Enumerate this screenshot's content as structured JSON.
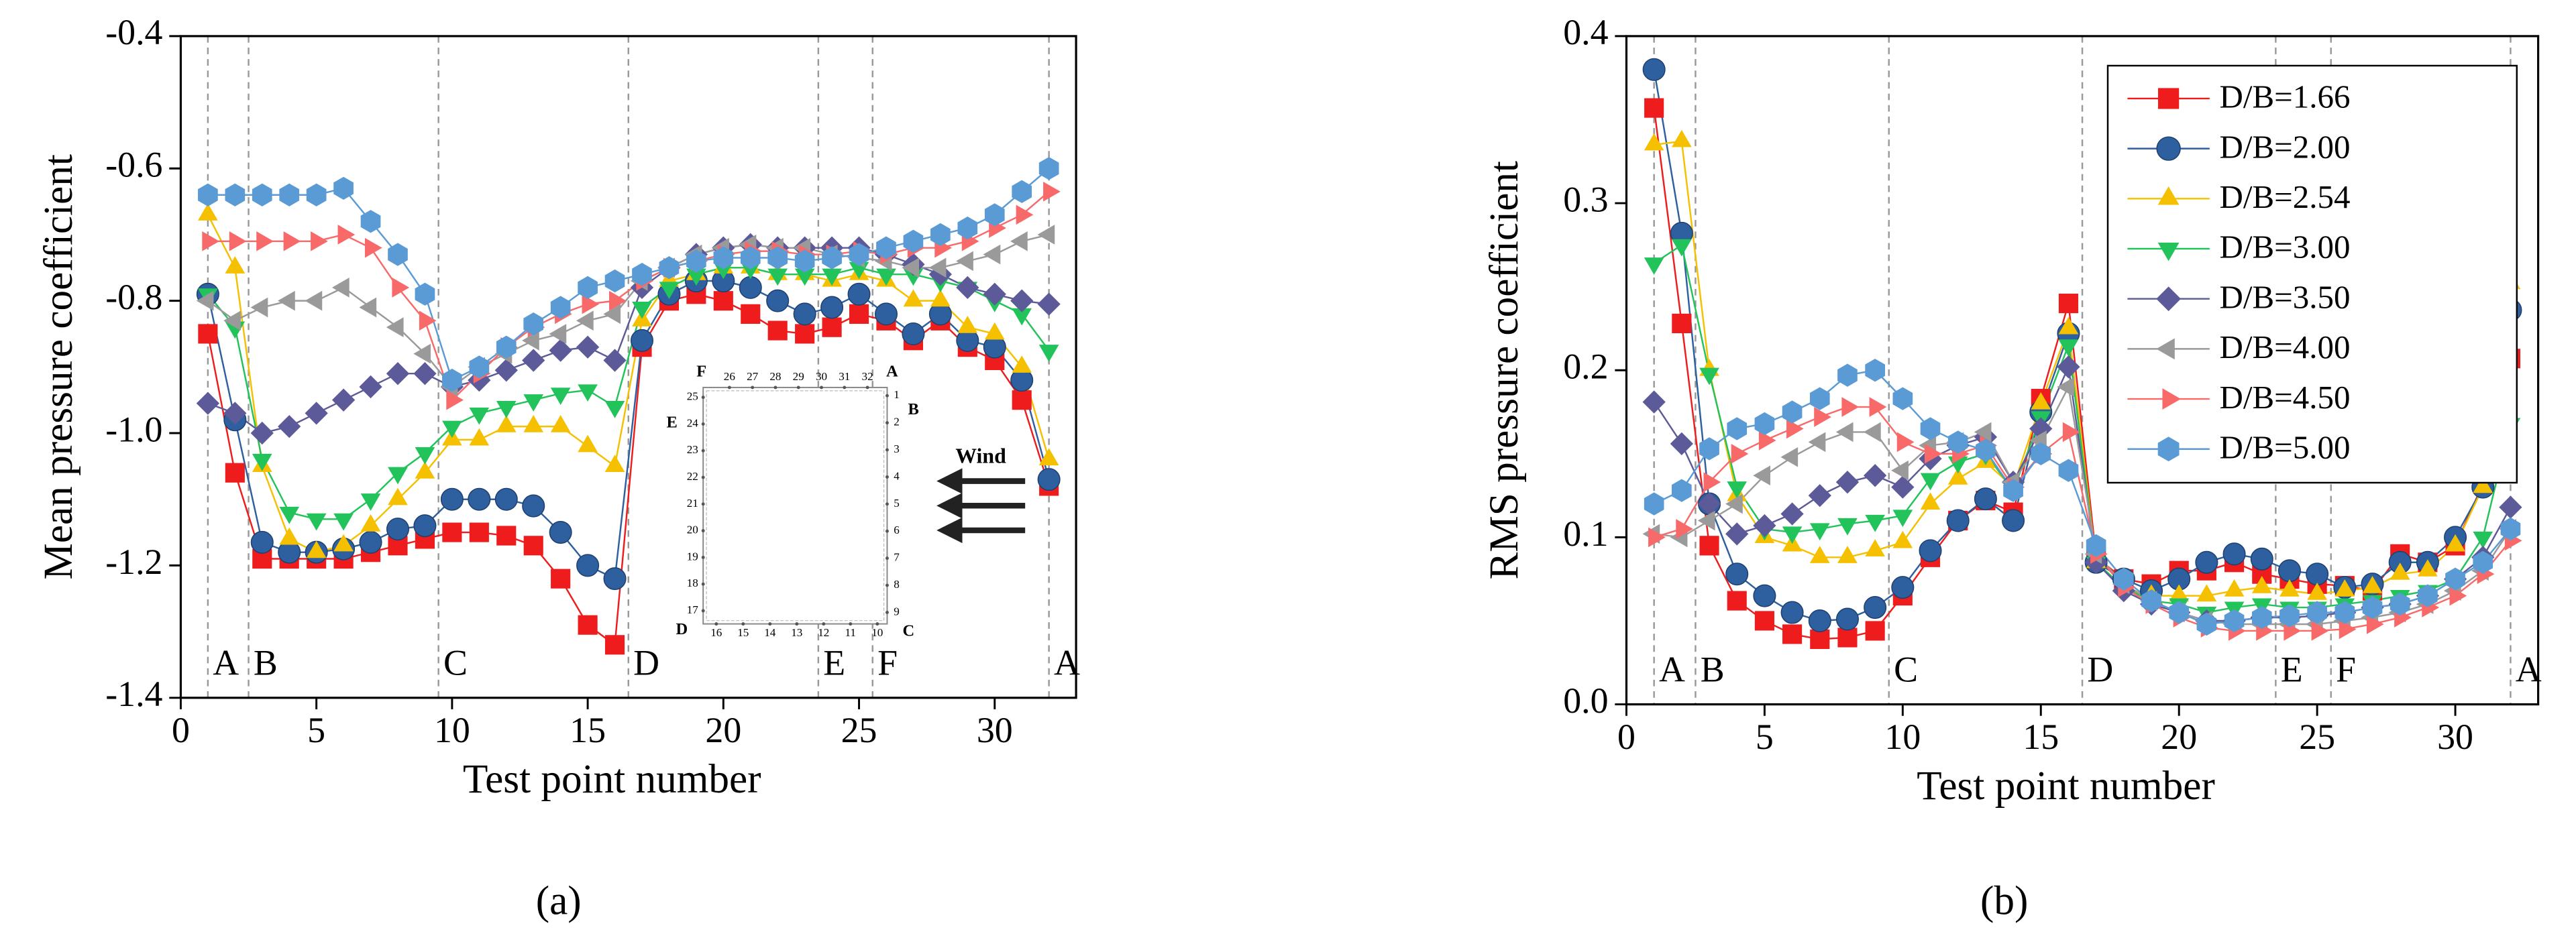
{
  "chart_data": [
    {
      "type": "line",
      "caption": "(a)",
      "ylabel": "Mean pressure coefficient",
      "xlabel": "Test point number",
      "xlim": [
        0,
        33
      ],
      "xticks": [
        0,
        5,
        10,
        15,
        20,
        25,
        30
      ],
      "ylim": [
        -1.4,
        -0.4
      ],
      "yticks": [
        -1.4,
        -1.2,
        {
          "value": -1,
          "label": "-1.0"
        },
        -0.8,
        -0.6,
        -0.4
      ],
      "sections": [
        {
          "x": 1,
          "label": "A"
        },
        {
          "x": 2.5,
          "label": "B"
        },
        {
          "x": 9.5,
          "label": "C"
        },
        {
          "x": 16.5,
          "label": "D"
        },
        {
          "x": 23.5,
          "label": "E"
        },
        {
          "x": 25.5,
          "label": "F"
        },
        {
          "x": 32,
          "label": "A"
        }
      ],
      "inset": {
        "corners": {
          "A": "A",
          "B": "B",
          "C": "C",
          "D": "D",
          "E": "E",
          "F": "F"
        },
        "points": [
          1,
          2,
          3,
          4,
          5,
          6,
          7,
          8,
          9,
          10,
          11,
          12,
          13,
          14,
          15,
          16,
          17,
          18,
          19,
          20,
          21,
          22,
          23,
          24,
          25,
          26,
          27,
          28,
          29,
          30,
          31,
          32
        ],
        "wind": "Wind"
      },
      "x": [
        1,
        2,
        3,
        4,
        5,
        6,
        7,
        8,
        9,
        10,
        11,
        12,
        13,
        14,
        15,
        16,
        17,
        18,
        19,
        20,
        21,
        22,
        23,
        24,
        25,
        26,
        27,
        28,
        29,
        30,
        31,
        32
      ],
      "series": [
        {
          "color": "#ee1c1c",
          "marker": "square",
          "values": [
            -0.85,
            -1.06,
            -1.19,
            -1.19,
            -1.19,
            -1.19,
            -1.18,
            -1.17,
            -1.16,
            -1.15,
            -1.15,
            -1.155,
            -1.17,
            -1.22,
            -1.29,
            -1.32,
            -0.87,
            -0.8,
            -0.79,
            -0.8,
            -0.82,
            -0.845,
            -0.85,
            -0.84,
            -0.82,
            -0.83,
            -0.86,
            -0.83,
            -0.87,
            -0.89,
            -0.95,
            -1.08
          ]
        },
        {
          "color": "#2e5f9e",
          "marker": "circle",
          "values": [
            -0.79,
            -0.98,
            -1.165,
            -1.18,
            -1.18,
            -1.175,
            -1.165,
            -1.145,
            -1.14,
            -1.1,
            -1.1,
            -1.1,
            -1.11,
            -1.15,
            -1.2,
            -1.22,
            -0.86,
            -0.79,
            -0.77,
            -0.77,
            -0.78,
            -0.8,
            -0.82,
            -0.81,
            -0.79,
            -0.82,
            -0.85,
            -0.82,
            -0.86,
            -0.87,
            -0.92,
            -1.07
          ]
        },
        {
          "color": "#f5c000",
          "marker": "triangle-up",
          "values": [
            -0.67,
            -0.75,
            -1.05,
            -1.16,
            -1.18,
            -1.17,
            -1.14,
            -1.1,
            -1.06,
            -1.01,
            -1.01,
            -0.99,
            -0.99,
            -0.99,
            -1.02,
            -1.05,
            -0.83,
            -0.77,
            -0.76,
            -0.75,
            -0.75,
            -0.76,
            -0.76,
            -0.77,
            -0.76,
            -0.77,
            -0.8,
            -0.8,
            -0.84,
            -0.85,
            -0.9,
            -1.04
          ]
        },
        {
          "color": "#22c35a",
          "marker": "triangle-down",
          "values": [
            -0.79,
            -0.84,
            -1.04,
            -1.12,
            -1.13,
            -1.13,
            -1.1,
            -1.06,
            -1.03,
            -0.99,
            -0.97,
            -0.96,
            -0.95,
            -0.94,
            -0.935,
            -0.96,
            -0.81,
            -0.78,
            -0.76,
            -0.75,
            -0.75,
            -0.76,
            -0.76,
            -0.76,
            -0.75,
            -0.76,
            -0.76,
            -0.77,
            -0.78,
            -0.8,
            -0.82,
            -0.875
          ]
        },
        {
          "color": "#5d5a9a",
          "marker": "diamond",
          "values": [
            -0.955,
            -0.97,
            -1,
            -0.99,
            -0.97,
            -0.95,
            -0.93,
            -0.91,
            -0.91,
            -0.93,
            -0.92,
            -0.905,
            -0.89,
            -0.875,
            -0.87,
            -0.89,
            -0.78,
            -0.75,
            -0.73,
            -0.72,
            -0.715,
            -0.72,
            -0.72,
            -0.72,
            -0.72,
            -0.73,
            -0.745,
            -0.76,
            -0.78,
            -0.79,
            -0.8,
            -0.805
          ]
        },
        {
          "color": "#9a9a9a",
          "marker": "triangle-left",
          "values": [
            -0.8,
            -0.83,
            -0.81,
            -0.8,
            -0.8,
            -0.78,
            -0.81,
            -0.84,
            -0.88,
            -0.93,
            -0.9,
            -0.88,
            -0.86,
            -0.85,
            -0.83,
            -0.82,
            -0.77,
            -0.75,
            -0.73,
            -0.72,
            -0.715,
            -0.72,
            -0.72,
            -0.73,
            -0.735,
            -0.74,
            -0.75,
            -0.75,
            -0.74,
            -0.73,
            -0.71,
            -0.7
          ]
        },
        {
          "color": "#f86a6a",
          "marker": "triangle-right",
          "values": [
            -0.71,
            -0.71,
            -0.71,
            -0.71,
            -0.71,
            -0.7,
            -0.72,
            -0.78,
            -0.83,
            -0.95,
            -0.91,
            -0.87,
            -0.84,
            -0.82,
            -0.805,
            -0.8,
            -0.77,
            -0.75,
            -0.74,
            -0.73,
            -0.725,
            -0.725,
            -0.73,
            -0.73,
            -0.725,
            -0.73,
            -0.72,
            -0.72,
            -0.71,
            -0.69,
            -0.67,
            -0.635
          ]
        },
        {
          "color": "#5b9bd5",
          "marker": "hexagon",
          "values": [
            -0.64,
            -0.64,
            -0.64,
            -0.64,
            -0.64,
            -0.63,
            -0.68,
            -0.73,
            -0.79,
            -0.92,
            -0.9,
            -0.87,
            -0.835,
            -0.81,
            -0.78,
            -0.77,
            -0.76,
            -0.75,
            -0.74,
            -0.735,
            -0.735,
            -0.735,
            -0.74,
            -0.735,
            -0.73,
            -0.72,
            -0.71,
            -0.7,
            -0.69,
            -0.67,
            -0.635,
            -0.6
          ]
        }
      ]
    },
    {
      "type": "line",
      "caption": "(b)",
      "ylabel": "RMS pressure coefficient",
      "xlabel": "Test point number",
      "xlim": [
        0,
        33
      ],
      "xticks": [
        0,
        5,
        10,
        15,
        20,
        25,
        30
      ],
      "ylim": [
        0,
        0.4
      ],
      "yticks": [
        {
          "value": 0,
          "label": "0.0"
        },
        0.1,
        0.2,
        0.3,
        0.4
      ],
      "legend": "upper right",
      "sections": [
        {
          "x": 1,
          "label": "A"
        },
        {
          "x": 2.5,
          "label": "B"
        },
        {
          "x": 9.5,
          "label": "C"
        },
        {
          "x": 16.5,
          "label": "D"
        },
        {
          "x": 23.5,
          "label": "E"
        },
        {
          "x": 25.5,
          "label": "F"
        },
        {
          "x": 32,
          "label": "A"
        }
      ],
      "x": [
        1,
        2,
        3,
        4,
        5,
        6,
        7,
        8,
        9,
        10,
        11,
        12,
        13,
        14,
        15,
        16,
        17,
        18,
        19,
        20,
        21,
        22,
        23,
        24,
        25,
        26,
        27,
        28,
        29,
        30,
        31,
        32
      ],
      "series": [
        {
          "name": "D/B=1.66",
          "color": "#ee1c1c",
          "marker": "square",
          "values": [
            0.357,
            0.228,
            0.095,
            0.062,
            0.05,
            0.042,
            0.039,
            0.04,
            0.044,
            0.065,
            0.088,
            0.11,
            0.122,
            0.115,
            0.183,
            0.24,
            0.088,
            0.075,
            0.072,
            0.08,
            0.08,
            0.085,
            0.078,
            0.075,
            0.072,
            0.071,
            0.068,
            0.09,
            0.085,
            0.095,
            0.132,
            0.207
          ]
        },
        {
          "name": "D/B=2.00",
          "color": "#2e5f9e",
          "marker": "circle",
          "values": [
            0.38,
            0.282,
            0.12,
            0.078,
            0.065,
            0.055,
            0.05,
            0.051,
            0.058,
            0.07,
            0.092,
            0.11,
            0.123,
            0.11,
            0.175,
            0.222,
            0.085,
            0.075,
            0.068,
            0.075,
            0.085,
            0.09,
            0.087,
            0.08,
            0.078,
            0.07,
            0.072,
            0.085,
            0.085,
            0.1,
            0.13,
            0.236
          ]
        },
        {
          "name": "D/B=2.54",
          "color": "#f5c000",
          "marker": "triangle-up",
          "values": [
            0.335,
            0.337,
            0.2,
            0.125,
            0.1,
            0.095,
            0.088,
            0.088,
            0.092,
            0.097,
            0.12,
            0.135,
            0.145,
            0.13,
            0.18,
            0.225,
            0.085,
            0.07,
            0.065,
            0.065,
            0.065,
            0.068,
            0.07,
            0.068,
            0.066,
            0.068,
            0.07,
            0.078,
            0.08,
            0.095,
            0.13,
            0.252
          ]
        },
        {
          "name": "D/B=3.00",
          "color": "#22c35a",
          "marker": "triangle-down",
          "values": [
            0.264,
            0.275,
            0.198,
            0.13,
            0.105,
            0.103,
            0.105,
            0.108,
            0.11,
            0.113,
            0.135,
            0.145,
            0.15,
            0.128,
            0.172,
            0.215,
            0.085,
            0.07,
            0.062,
            0.06,
            0.055,
            0.058,
            0.06,
            0.058,
            0.058,
            0.06,
            0.062,
            0.065,
            0.068,
            0.075,
            0.1,
            0.168
          ]
        },
        {
          "name": "D/B=3.50",
          "color": "#5d5a9a",
          "marker": "diamond",
          "values": [
            0.181,
            0.156,
            0.12,
            0.102,
            0.107,
            0.114,
            0.125,
            0.133,
            0.137,
            0.13,
            0.147,
            0.155,
            0.16,
            0.133,
            0.165,
            0.202,
            0.085,
            0.068,
            0.06,
            0.055,
            0.05,
            0.05,
            0.052,
            0.052,
            0.053,
            0.055,
            0.058,
            0.06,
            0.065,
            0.075,
            0.088,
            0.118
          ]
        },
        {
          "name": "D/B=4.00",
          "color": "#9a9a9a",
          "marker": "triangle-left",
          "values": [
            0.102,
            0.1,
            0.11,
            0.12,
            0.137,
            0.148,
            0.157,
            0.163,
            0.163,
            0.14,
            0.155,
            0.157,
            0.163,
            0.133,
            0.158,
            0.19,
            0.09,
            0.072,
            0.062,
            0.055,
            0.05,
            0.048,
            0.048,
            0.048,
            0.048,
            0.05,
            0.052,
            0.055,
            0.06,
            0.068,
            0.08,
            0.105
          ]
        },
        {
          "name": "D/B=4.50",
          "color": "#f86a6a",
          "marker": "triangle-right",
          "values": [
            0.1,
            0.105,
            0.133,
            0.15,
            0.158,
            0.165,
            0.172,
            0.178,
            0.178,
            0.157,
            0.15,
            0.15,
            0.155,
            0.13,
            0.15,
            0.163,
            0.09,
            0.07,
            0.06,
            0.052,
            0.046,
            0.044,
            0.044,
            0.044,
            0.044,
            0.045,
            0.048,
            0.052,
            0.058,
            0.065,
            0.078,
            0.098
          ]
        },
        {
          "name": "D/B=5.00",
          "color": "#5b9bd5",
          "marker": "hexagon",
          "values": [
            0.12,
            0.128,
            0.153,
            0.165,
            0.168,
            0.175,
            0.183,
            0.197,
            0.2,
            0.183,
            0.165,
            0.157,
            0.152,
            0.128,
            0.15,
            0.14,
            0.095,
            0.075,
            0.062,
            0.055,
            0.048,
            0.05,
            0.052,
            0.053,
            0.055,
            0.055,
            0.058,
            0.06,
            0.065,
            0.075,
            0.085,
            0.105
          ]
        }
      ]
    }
  ]
}
